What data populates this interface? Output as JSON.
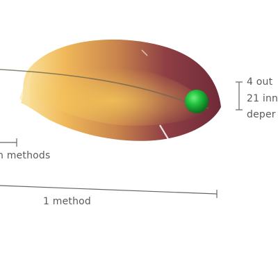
{
  "labels": {
    "methods_partial": "n methods",
    "one_method": "1 method",
    "right_line_1": "4 out",
    "right_line_2": "21 inn",
    "right_line_3": "deper"
  },
  "colors": {
    "feather_dark": "#7a2d3a",
    "feather_mid": "#b4664a",
    "feather_light": "#f3c35a",
    "node_green": "#1fae3a",
    "line_gray": "#666666"
  },
  "icons": {
    "feather": "feather-icon",
    "node": "green-dot-icon"
  }
}
